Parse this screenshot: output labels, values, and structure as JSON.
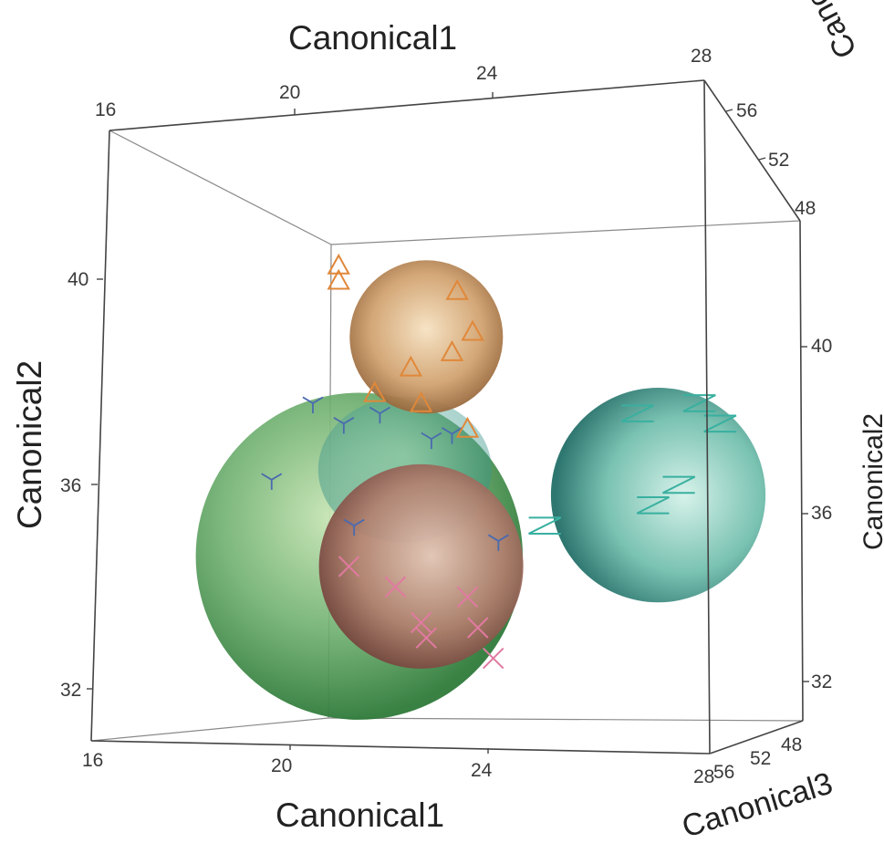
{
  "chart_data": {
    "type": "scatter3d",
    "axes": {
      "x": {
        "label": "Canonical1",
        "range": [
          16,
          28
        ],
        "ticks": [
          "16",
          "20",
          "24",
          "28"
        ]
      },
      "y": {
        "label": "Canonical2",
        "range": [
          31,
          43
        ],
        "ticks": [
          "32",
          "36",
          "40"
        ]
      },
      "z": {
        "label": "Canonical3",
        "range": [
          47,
          58
        ],
        "ticks": [
          "48",
          "52",
          "56"
        ]
      }
    },
    "groups": [
      {
        "color": "#a8c878",
        "sphere_color": "#5aa060",
        "marker": "asterisk",
        "marker_color": "#4a6ab0",
        "center": {
          "x": 21.2,
          "y": 34.6,
          "z": 52
        },
        "radius_units": 3.2,
        "points": [
          {
            "x": 19.5,
            "y": 36.1
          },
          {
            "x": 20.3,
            "y": 37.6
          },
          {
            "x": 20.9,
            "y": 37.2
          },
          {
            "x": 21.6,
            "y": 37.4
          },
          {
            "x": 22.6,
            "y": 36.9
          },
          {
            "x": 23.0,
            "y": 37.0
          },
          {
            "x": 23.9,
            "y": 34.9
          },
          {
            "x": 21.1,
            "y": 35.2
          }
        ]
      },
      {
        "color": "#c29480",
        "sphere_color": "#a45f58",
        "marker": "x",
        "marker_color": "#e07aa0",
        "center": {
          "x": 22.4,
          "y": 34.4,
          "z": 50.5
        },
        "radius_units": 2.0,
        "points": [
          {
            "x": 21.0,
            "y": 34.4
          },
          {
            "x": 21.9,
            "y": 34.0
          },
          {
            "x": 22.4,
            "y": 33.3
          },
          {
            "x": 23.3,
            "y": 33.8
          },
          {
            "x": 23.8,
            "y": 32.6
          },
          {
            "x": 22.5,
            "y": 33.0
          },
          {
            "x": 23.5,
            "y": 33.2
          }
        ]
      },
      {
        "color": "#e0b070",
        "sphere_color": "#c8945a",
        "marker": "triangle",
        "marker_color": "#e0883a",
        "center": {
          "x": 22.5,
          "y": 38.9,
          "z": 51
        },
        "radius_units": 1.5,
        "points": [
          {
            "x": 20.8,
            "y": 40.3
          },
          {
            "x": 20.8,
            "y": 40.0
          },
          {
            "x": 23.1,
            "y": 39.8
          },
          {
            "x": 23.4,
            "y": 39.0
          },
          {
            "x": 23.0,
            "y": 38.6
          },
          {
            "x": 21.5,
            "y": 37.8
          },
          {
            "x": 22.4,
            "y": 37.6
          },
          {
            "x": 23.3,
            "y": 37.1
          },
          {
            "x": 22.2,
            "y": 38.3
          }
        ]
      },
      {
        "color": "#70c0b0",
        "sphere_color": "#2f8f84",
        "marker": "z",
        "marker_color": "#38b0a0",
        "center": {
          "x": 27.0,
          "y": 35.8,
          "z": 51
        },
        "radius_units": 2.1,
        "points": [
          {
            "x": 26.6,
            "y": 37.4
          },
          {
            "x": 27.8,
            "y": 37.6
          },
          {
            "x": 28.2,
            "y": 37.2
          },
          {
            "x": 27.4,
            "y": 36.0
          },
          {
            "x": 26.9,
            "y": 35.6
          },
          {
            "x": 24.8,
            "y": 35.2
          }
        ]
      }
    ]
  }
}
